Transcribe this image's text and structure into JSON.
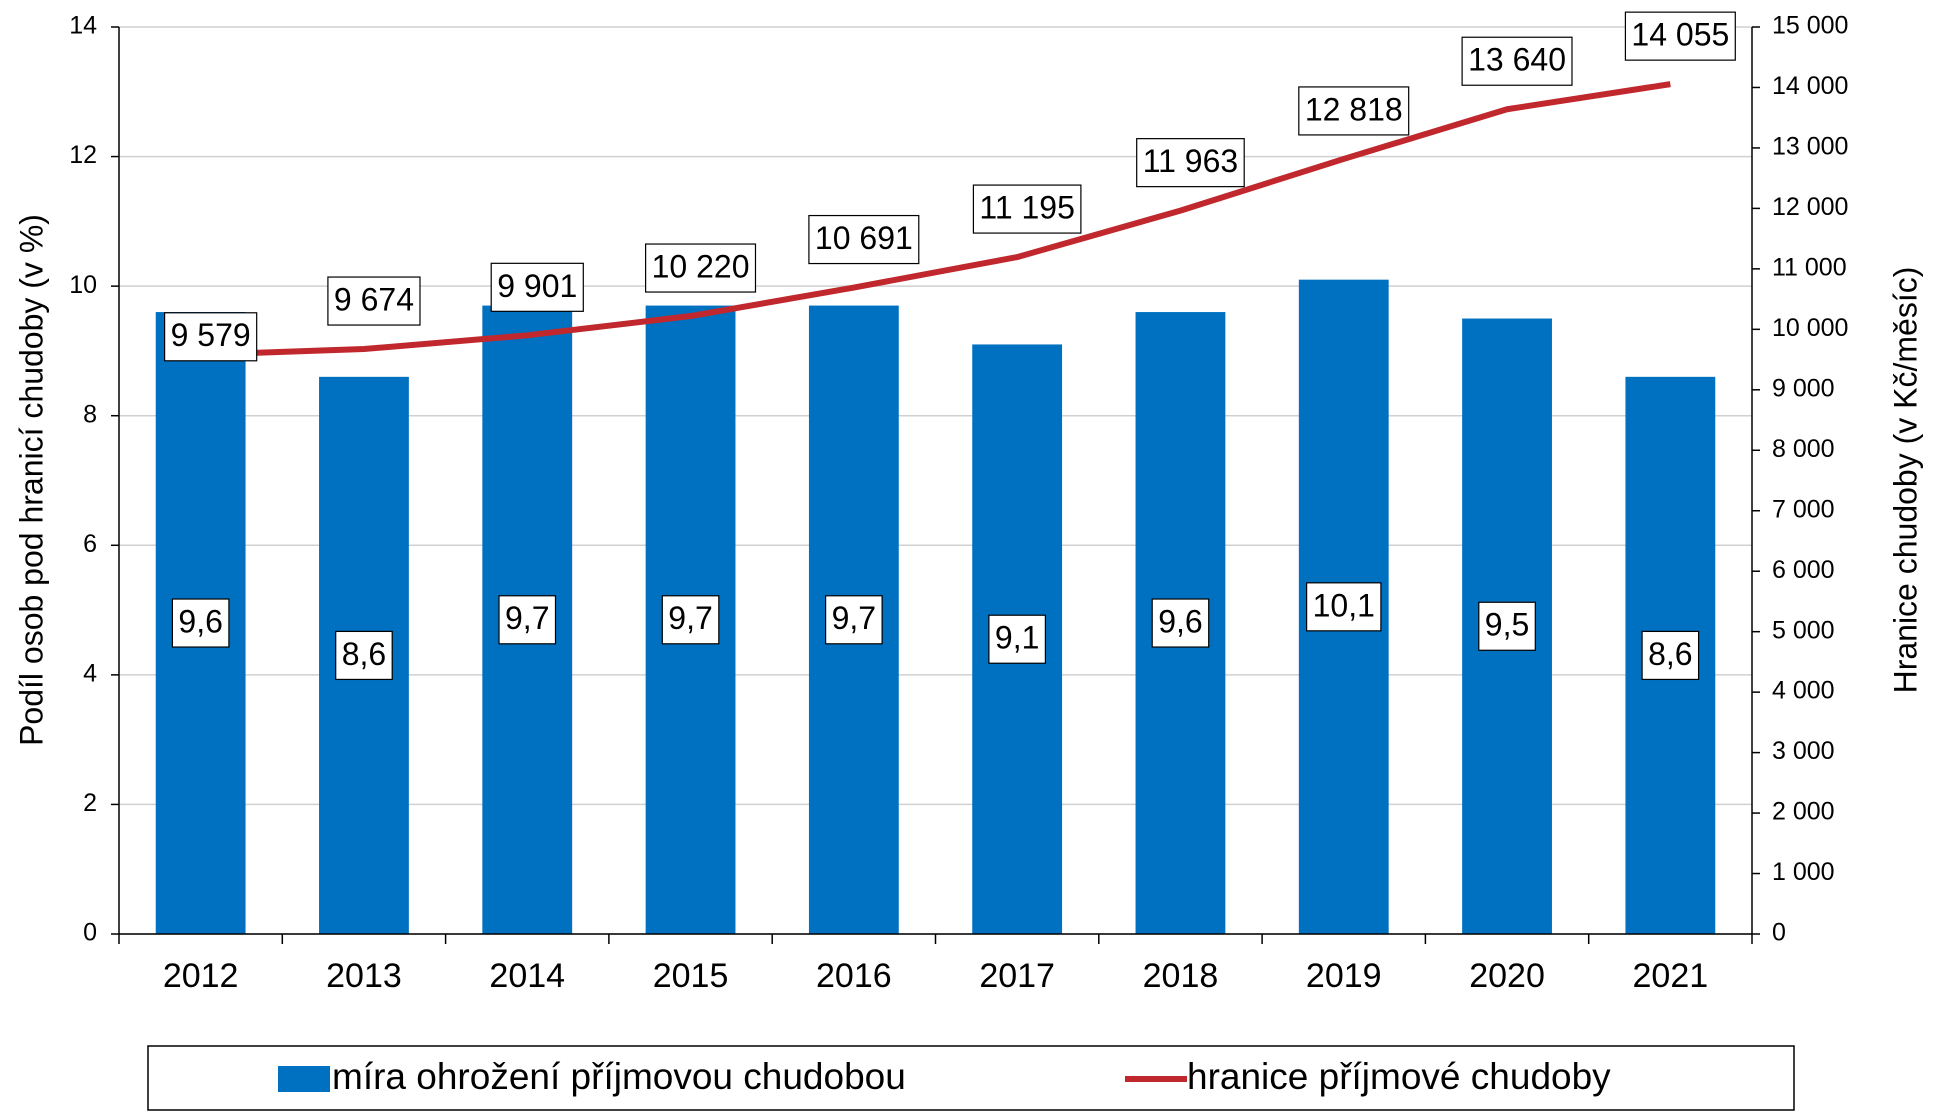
{
  "chart_data": {
    "type": "bar",
    "categories": [
      "2012",
      "2013",
      "2014",
      "2015",
      "2016",
      "2017",
      "2018",
      "2019",
      "2020",
      "2021"
    ],
    "series": [
      {
        "name": "míra ohrožení příjmovou chudobou",
        "type": "bar",
        "color": "#0070c0",
        "values": [
          9.6,
          8.6,
          9.7,
          9.7,
          9.7,
          9.1,
          9.6,
          10.1,
          9.5,
          8.6
        ],
        "value_labels": [
          "9,6",
          "8,6",
          "9,7",
          "9,7",
          "9,7",
          "9,1",
          "9,6",
          "10,1",
          "9,5",
          "8,6"
        ]
      },
      {
        "name": "hranice příjmové chudoby",
        "type": "line",
        "axis": "y2",
        "color": "#c0282d",
        "values": [
          9579,
          9674,
          9901,
          10220,
          10691,
          11195,
          11963,
          12818,
          13640,
          14055
        ],
        "value_labels": [
          "9 579",
          "9 674",
          "9 901",
          "10 220",
          "10 691",
          "11 195",
          "11 963",
          "12 818",
          "13 640",
          "14 055"
        ]
      }
    ],
    "ylabel": "Podíl osob pod hranicí chudoby (v %)",
    "y2label": "Hranice chudoby (v Kč/měsíc)",
    "ylim": [
      0,
      14
    ],
    "yticks": [
      0,
      2,
      4,
      6,
      8,
      10,
      12,
      14
    ],
    "y2lim": [
      0,
      15000
    ],
    "y2ticks": [
      0,
      {
        "value": 1000,
        "label": "1 000"
      },
      {
        "value": 2000,
        "label": "2 000"
      },
      {
        "value": 3000,
        "label": "3 000"
      },
      {
        "value": 4000,
        "label": "4 000"
      },
      {
        "value": 5000,
        "label": "5 000"
      },
      {
        "value": 6000,
        "label": "6 000"
      },
      {
        "value": 7000,
        "label": "7 000"
      },
      {
        "value": 8000,
        "label": "8 000"
      },
      {
        "value": 9000,
        "label": "9 000"
      },
      {
        "value": 10000,
        "label": "10 000"
      },
      {
        "value": 11000,
        "label": "11 000"
      },
      {
        "value": 12000,
        "label": "12 000"
      },
      {
        "value": 13000,
        "label": "13 000"
      },
      {
        "value": 14000,
        "label": "14 000"
      },
      {
        "value": 15000,
        "label": "15 000"
      }
    ],
    "grid": true,
    "legend": "bottom"
  }
}
